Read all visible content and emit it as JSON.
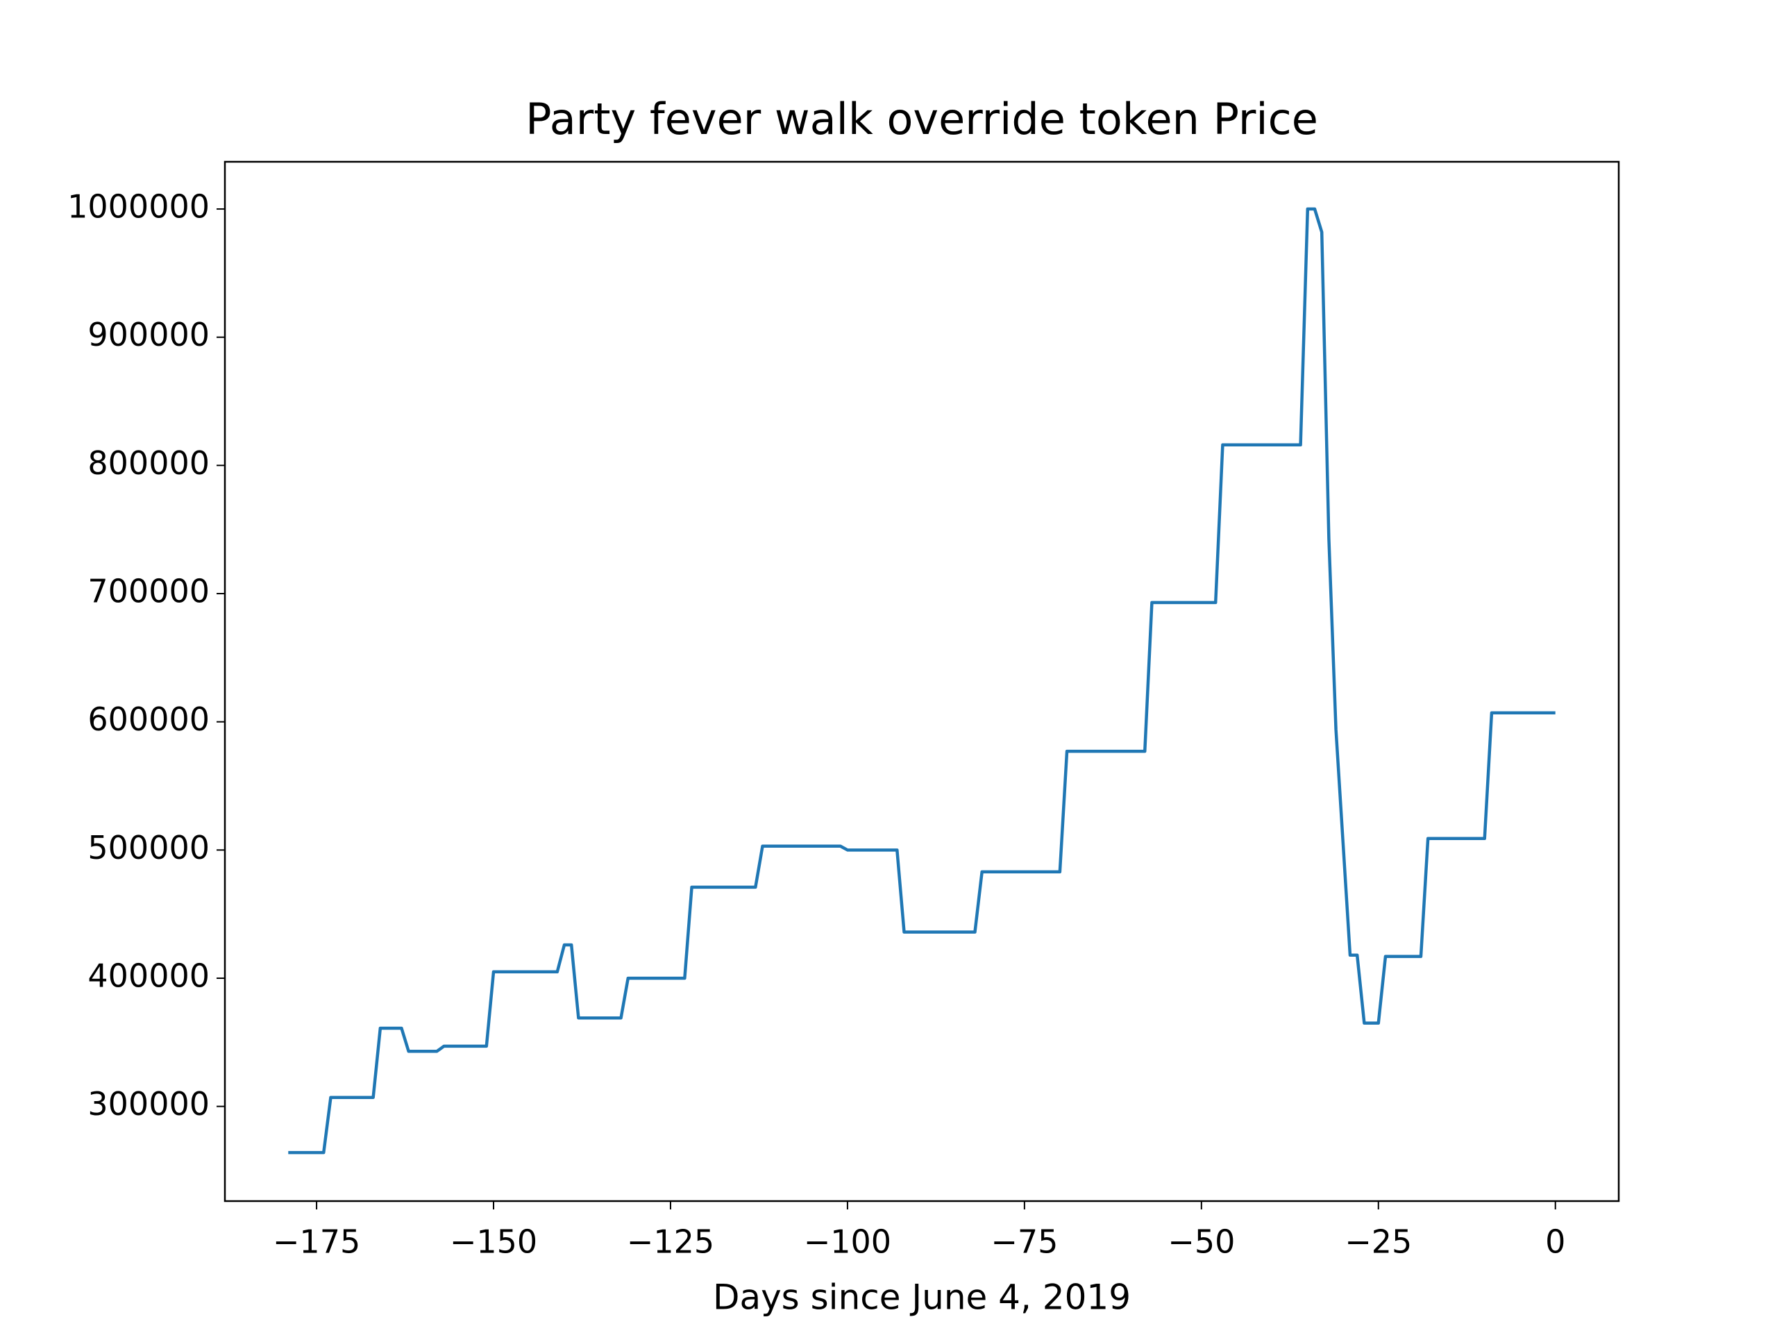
{
  "chart_data": {
    "type": "line",
    "title": "Party fever walk override token Price",
    "xlabel": "Days since June 4, 2019",
    "x": [
      -179,
      -174,
      -173,
      -167,
      -166,
      -163,
      -162,
      -158,
      -157,
      -151,
      -150,
      -141,
      -140,
      -139,
      -138,
      -132,
      -131,
      -123,
      -122,
      -113,
      -112,
      -101,
      -100,
      -93,
      -92,
      -82,
      -81,
      -70,
      -69,
      -58,
      -57,
      -48,
      -47,
      -36,
      -35,
      -34,
      -33,
      -32,
      -31,
      -30,
      -29,
      -28,
      -27,
      -25,
      -24,
      -19,
      -18,
      -10,
      -9,
      0
    ],
    "series": [
      {
        "color": "#1f77b4",
        "values": [
          264000,
          264000,
          307000,
          307000,
          361000,
          361000,
          343000,
          343000,
          347000,
          347000,
          405000,
          405000,
          426000,
          426000,
          369000,
          369000,
          400000,
          400000,
          471000,
          471000,
          503000,
          503000,
          500000,
          500000,
          436000,
          436000,
          483000,
          483000,
          577000,
          577000,
          693000,
          693000,
          816000,
          816000,
          1000000,
          1000000,
          982000,
          743000,
          594000,
          506000,
          418000,
          418000,
          365000,
          365000,
          417000,
          417000,
          509000,
          509000,
          607000,
          607000
        ]
      }
    ],
    "xlim": [
      -187.95,
      8.95
    ],
    "xticks": [
      {
        "value": -175,
        "label": "−175"
      },
      {
        "value": -150,
        "label": "−150"
      },
      {
        "value": -125,
        "label": "−125"
      },
      {
        "value": -100,
        "label": "−100"
      },
      {
        "value": -75,
        "label": "−75"
      },
      {
        "value": -50,
        "label": "−50"
      },
      {
        "value": -25,
        "label": "−25"
      },
      0
    ],
    "ylim": [
      226150,
      1036850
    ],
    "yticks": [
      300000,
      400000,
      500000,
      600000,
      700000,
      800000,
      900000,
      1000000
    ]
  }
}
